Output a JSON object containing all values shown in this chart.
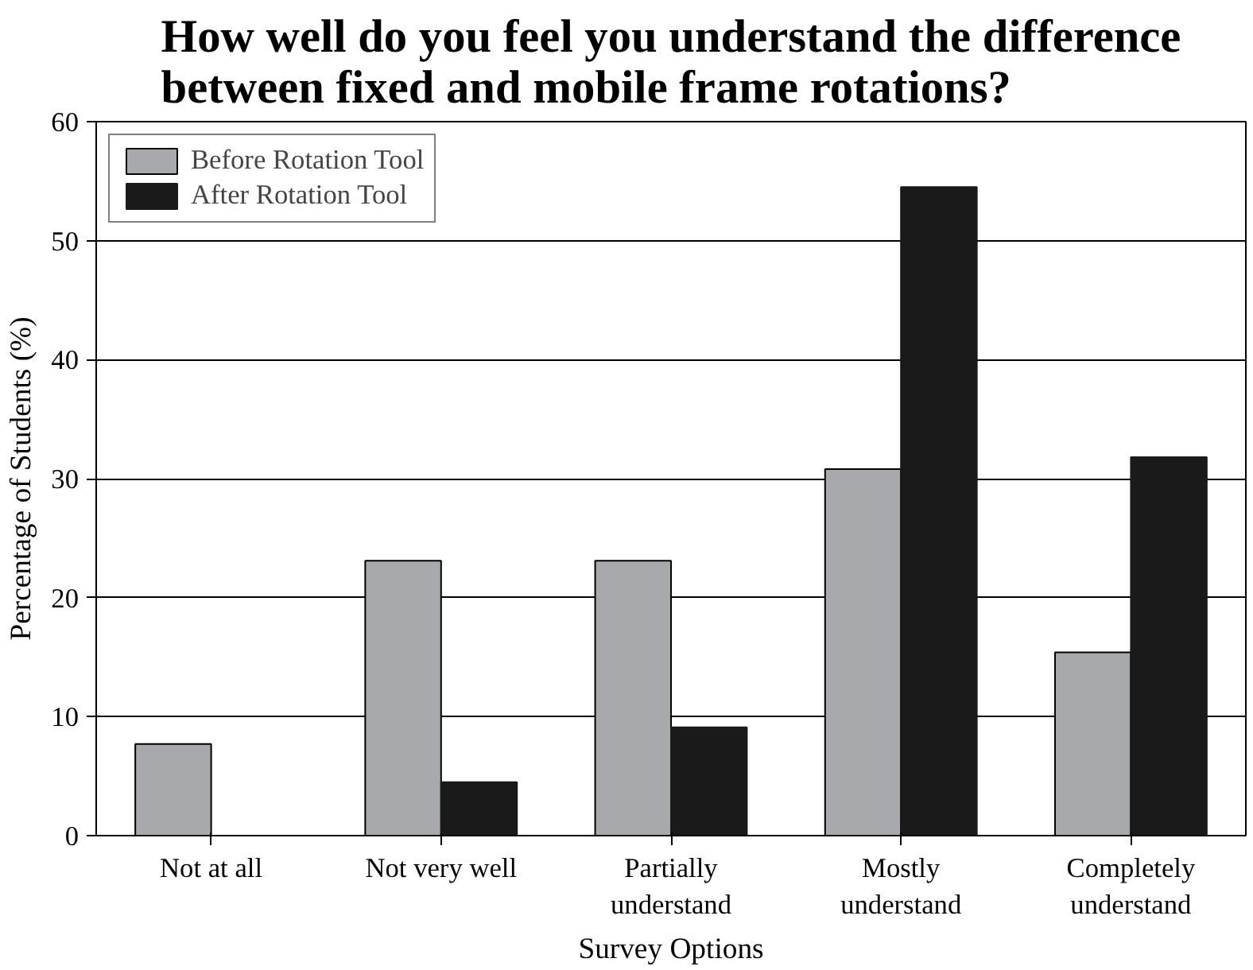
{
  "chart_data": {
    "type": "bar",
    "title": "How well do you feel you understand the difference\nbetween fixed and mobile frame rotations?",
    "xlabel": "Survey Options",
    "ylabel": "Percentage of Students (%)",
    "categories": [
      "Not at all",
      "Not very well",
      "Partially\nunderstand",
      "Mostly\nunderstand",
      "Completely\nunderstand"
    ],
    "series": [
      {
        "name": "Before Rotation Tool",
        "color": "#a8a9ad",
        "values": [
          7.7,
          23.1,
          23.1,
          30.8,
          15.4
        ]
      },
      {
        "name": "After Rotation Tool",
        "color": "#1a1a1a",
        "values": [
          0,
          4.5,
          9.1,
          54.5,
          31.8
        ]
      }
    ],
    "ylim": [
      0,
      60
    ],
    "yticks": [
      0,
      10,
      20,
      30,
      40,
      50,
      60
    ],
    "grid": "y",
    "legend": "top left"
  }
}
